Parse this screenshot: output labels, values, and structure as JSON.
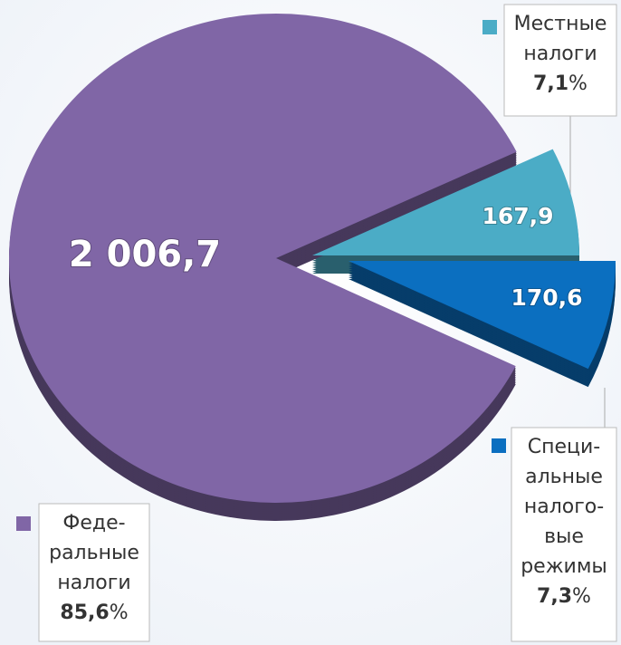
{
  "chart_data": {
    "type": "pie",
    "categories": [
      [
        "Феде-",
        "ральные",
        "налоги"
      ],
      [
        "Местные",
        "налоги"
      ],
      [
        "Специ-",
        "альные",
        "налого-",
        "вые",
        "режимы"
      ]
    ],
    "values": [
      2006.7,
      167.9,
      170.6
    ],
    "value_labels": [
      "2 006,7",
      "167,9",
      "170,6"
    ],
    "percents": [
      85.6,
      7.1,
      7.3
    ],
    "percent_labels": [
      "85,6",
      "7,1",
      "7,3"
    ],
    "percent_unit": "%",
    "colors": [
      "#8066a6",
      "#4bacc6",
      "#0b6fc0"
    ]
  }
}
